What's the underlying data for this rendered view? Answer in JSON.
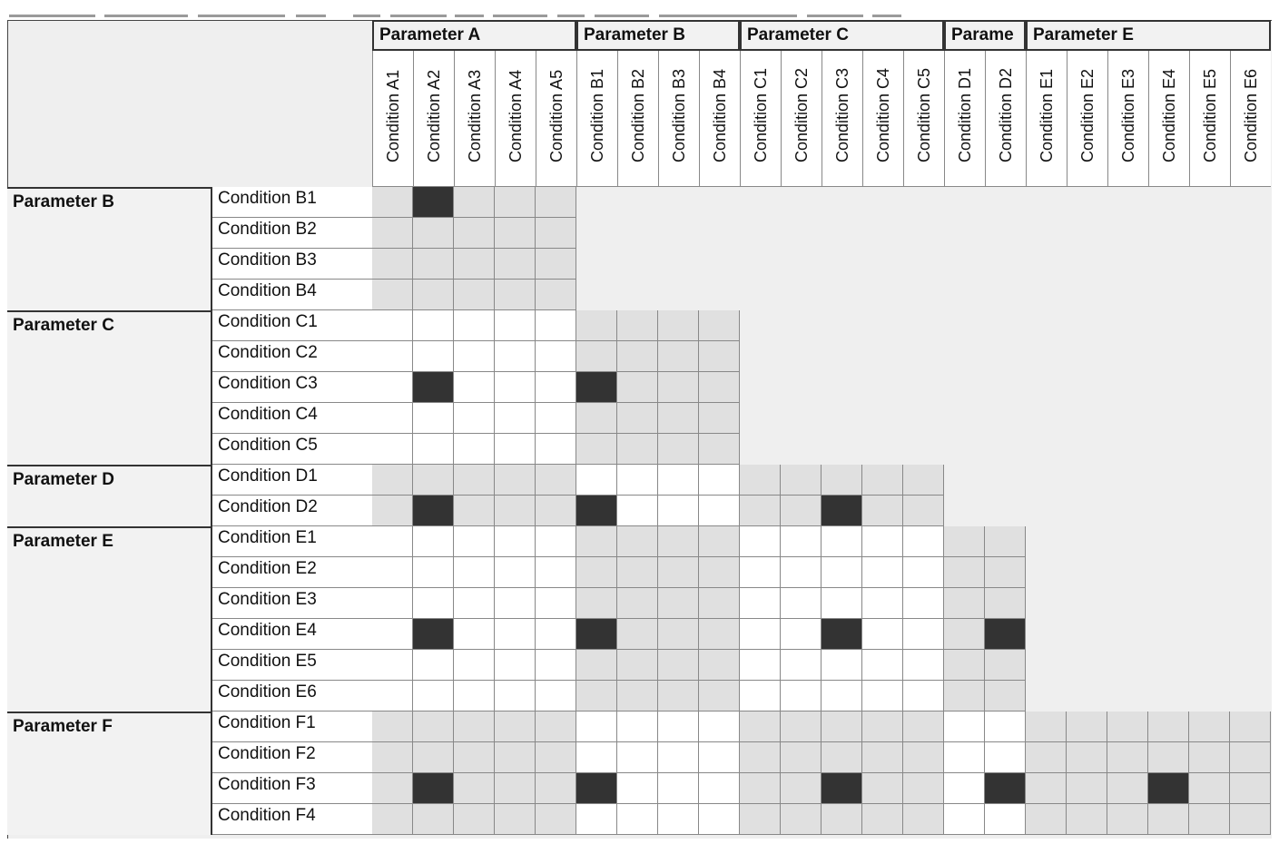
{
  "column_groups": [
    {
      "label": "Parameter A",
      "conditions": [
        "Condition A1",
        "Condition A2",
        "Condition A3",
        "Condition A4",
        "Condition A5"
      ]
    },
    {
      "label": "Parameter B",
      "conditions": [
        "Condition B1",
        "Condition B2",
        "Condition B3",
        "Condition B4"
      ]
    },
    {
      "label": "Parameter C",
      "conditions": [
        "Condition C1",
        "Condition C2",
        "Condition C3",
        "Condition C4",
        "Condition C5"
      ]
    },
    {
      "label": "Parame",
      "conditions": [
        "Condition D1",
        "Condition D2"
      ]
    },
    {
      "label": "Parameter E",
      "conditions": [
        "Condition E1",
        "Condition E2",
        "Condition E3",
        "Condition E4",
        "Condition E5",
        "Condition E6"
      ]
    }
  ],
  "row_groups": [
    {
      "label": "Parameter B",
      "conditions": [
        "Condition B1",
        "Condition B2",
        "Condition B3",
        "Condition B4"
      ],
      "selected": [
        {
          "col_group": 0,
          "col": 1,
          "row": 0
        }
      ]
    },
    {
      "label": "Parameter C",
      "conditions": [
        "Condition C1",
        "Condition C2",
        "Condition C3",
        "Condition C4",
        "Condition C5"
      ],
      "selected": [
        {
          "col_group": 0,
          "col": 1,
          "row": 2
        },
        {
          "col_group": 1,
          "col": 0,
          "row": 2
        }
      ]
    },
    {
      "label": "Parameter D",
      "conditions": [
        "Condition D1",
        "Condition D2"
      ],
      "selected": [
        {
          "col_group": 0,
          "col": 1,
          "row": 1
        },
        {
          "col_group": 1,
          "col": 0,
          "row": 1
        },
        {
          "col_group": 2,
          "col": 2,
          "row": 1
        }
      ]
    },
    {
      "label": "Parameter E",
      "conditions": [
        "Condition E1",
        "Condition E2",
        "Condition E3",
        "Condition E4",
        "Condition E5",
        "Condition E6"
      ],
      "selected": [
        {
          "col_group": 0,
          "col": 1,
          "row": 3
        },
        {
          "col_group": 1,
          "col": 0,
          "row": 3
        },
        {
          "col_group": 2,
          "col": 2,
          "row": 3
        },
        {
          "col_group": 3,
          "col": 1,
          "row": 3
        }
      ]
    },
    {
      "label": "Parameter F",
      "conditions": [
        "Condition F1",
        "Condition F2",
        "Condition F3",
        "Condition F4"
      ],
      "selected": [
        {
          "col_group": 0,
          "col": 1,
          "row": 2
        },
        {
          "col_group": 1,
          "col": 0,
          "row": 2
        },
        {
          "col_group": 2,
          "col": 2,
          "row": 2
        },
        {
          "col_group": 3,
          "col": 1,
          "row": 2
        },
        {
          "col_group": 4,
          "col": 3,
          "row": 2
        }
      ]
    }
  ],
  "colors": {
    "selected": "#333333",
    "shaded": "#e0e0e0",
    "unshaded": "#ffffff",
    "background": "#efefef"
  }
}
